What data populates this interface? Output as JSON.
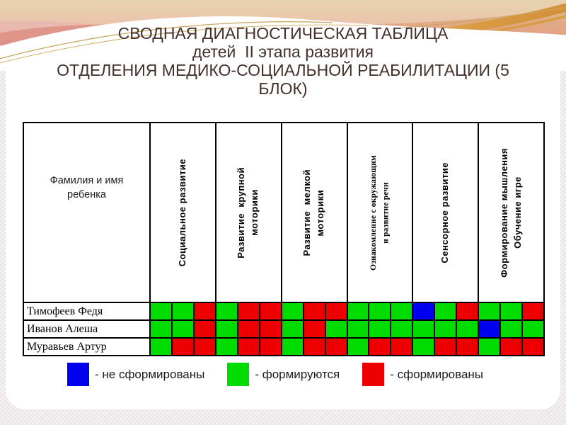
{
  "slide": {
    "title_lines": [
      "СВОДНАЯ ДИАГНОСТИЧЕСКАЯ ТАБЛИЦА",
      "детей  II этапа развития",
      "ОТДЕЛЕНИЯ МЕДИКО-СОЦИАЛЬНОЙ РЕАБИЛИТАЦИИ (5",
      "БЛОК)"
    ],
    "title_color": "#44302B"
  },
  "table": {
    "name_header": "Фамилия и  имя\nребенка",
    "columns": [
      "Социальное развитие",
      "Развитие  крупной\nмоторики",
      "Развитие  мелкой\nмоторики",
      "Ознакомление с окружающим\nи развитие речи",
      "Сенсорное развитие",
      "Формирование мышления\nОбучение игре"
    ],
    "rows": [
      {
        "name": "Тимофеев  Федя",
        "cells": [
          "g",
          "g",
          "r",
          "g",
          "r",
          "r",
          "g",
          "r",
          "r",
          "g",
          "g",
          "g",
          "b",
          "g",
          "r",
          "g",
          "g",
          "r"
        ]
      },
      {
        "name": "Иванов Алеша",
        "cells": [
          "g",
          "g",
          "r",
          "g",
          "r",
          "r",
          "g",
          "r",
          "g",
          "g",
          "g",
          "g",
          "g",
          "g",
          "g",
          "b",
          "g",
          "g"
        ]
      },
      {
        "name": "Муравьев Артур",
        "cells": [
          "g",
          "r",
          "r",
          "g",
          "r",
          "r",
          "g",
          "r",
          "r",
          "g",
          "r",
          "r",
          "g",
          "r",
          "r",
          "g",
          "r",
          "r"
        ]
      }
    ]
  },
  "legend": {
    "items": [
      {
        "color": "b",
        "label": "- не сформированы"
      },
      {
        "color": "g",
        "label": "- формируются"
      },
      {
        "color": "r",
        "label": "- сформированы"
      }
    ]
  },
  "colors": {
    "b": "#0000EE",
    "g": "#00DC00",
    "r": "#EE0000"
  }
}
